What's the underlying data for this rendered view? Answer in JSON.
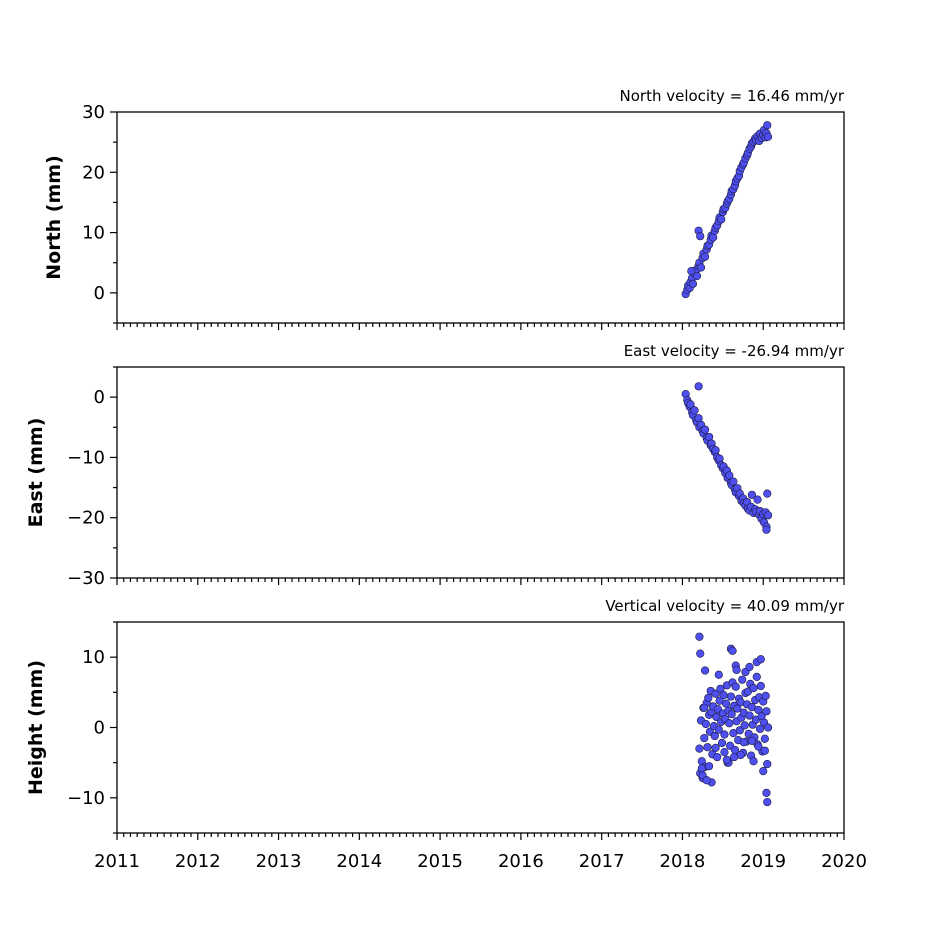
{
  "figure": {
    "point_color": "#4f4ff0",
    "point_edge_color": "#1a1a40"
  },
  "chart_data": [
    {
      "type": "scatter",
      "title": "North velocity = 16.46 mm/yr",
      "xlabel": "",
      "ylabel": "North (mm)",
      "xlim": [
        2011,
        2020
      ],
      "ylim": [
        -5,
        30
      ],
      "y_ticks": [
        0,
        10,
        20,
        30
      ],
      "y_tick_labels": [
        "0",
        "10",
        "20",
        "30"
      ],
      "grid": false,
      "series": [
        {
          "x": [
            2018.04,
            2018.06,
            2018.07,
            2018.09,
            2018.1,
            2018.12,
            2018.13,
            2018.15,
            2018.17,
            2018.18,
            2018.2,
            2018.21,
            2018.23,
            2018.25,
            2018.26,
            2018.28,
            2018.3,
            2018.31,
            2018.33,
            2018.35,
            2018.36,
            2018.38,
            2018.4,
            2018.41,
            2018.43,
            2018.45,
            2018.46,
            2018.48,
            2018.5,
            2018.51,
            2018.53,
            2018.55,
            2018.56,
            2018.58,
            2018.6,
            2018.61,
            2018.63,
            2018.65,
            2018.66,
            2018.68,
            2018.7,
            2018.71,
            2018.73,
            2018.75,
            2018.76,
            2018.78,
            2018.8,
            2018.81,
            2018.83,
            2018.85,
            2018.86,
            2018.88,
            2018.9,
            2018.91,
            2018.93,
            2018.95,
            2018.96,
            2018.98,
            2019.0,
            2019.01,
            2019.03,
            2019.04,
            2019.06,
            2018.2,
            2018.22,
            2018.11,
            2019.05
          ],
          "y": [
            -0.2,
            0.5,
            1.2,
            0.8,
            1.8,
            2.5,
            1.5,
            3.2,
            3.8,
            2.8,
            4.5,
            5.0,
            4.2,
            5.8,
            6.5,
            6.0,
            7.2,
            7.8,
            8.0,
            8.8,
            9.5,
            9.2,
            10.3,
            10.8,
            11.2,
            11.9,
            12.5,
            12.2,
            13.4,
            13.9,
            14.1,
            14.8,
            15.2,
            15.6,
            16.3,
            16.9,
            17.2,
            17.8,
            18.5,
            19.0,
            19.4,
            20.2,
            20.8,
            21.3,
            21.6,
            22.3,
            22.8,
            23.2,
            23.9,
            24.3,
            24.8,
            25.1,
            25.6,
            25.3,
            26.0,
            25.2,
            26.4,
            25.7,
            26.2,
            27.0,
            25.8,
            26.5,
            25.9,
            10.3,
            9.4,
            3.6,
            27.8
          ]
        }
      ]
    },
    {
      "type": "scatter",
      "title": "East velocity = -26.94 mm/yr",
      "xlabel": "",
      "ylabel": "East (mm)",
      "xlim": [
        2011,
        2020
      ],
      "ylim": [
        -30,
        5
      ],
      "y_ticks": [
        -30,
        -20,
        -10,
        0
      ],
      "y_tick_labels": [
        "−30",
        "−20",
        "−10",
        "0"
      ],
      "grid": false,
      "series": [
        {
          "x": [
            2018.04,
            2018.06,
            2018.07,
            2018.09,
            2018.1,
            2018.12,
            2018.13,
            2018.15,
            2018.17,
            2018.18,
            2018.2,
            2018.21,
            2018.23,
            2018.25,
            2018.26,
            2018.28,
            2018.3,
            2018.31,
            2018.33,
            2018.35,
            2018.36,
            2018.38,
            2018.4,
            2018.41,
            2018.43,
            2018.45,
            2018.46,
            2018.48,
            2018.5,
            2018.51,
            2018.53,
            2018.55,
            2018.56,
            2018.58,
            2018.6,
            2018.61,
            2018.63,
            2018.65,
            2018.66,
            2018.68,
            2018.7,
            2018.71,
            2018.73,
            2018.75,
            2018.76,
            2018.78,
            2018.8,
            2018.81,
            2018.83,
            2018.85,
            2018.86,
            2018.88,
            2018.9,
            2018.91,
            2018.93,
            2018.95,
            2018.96,
            2018.98,
            2019.0,
            2019.01,
            2019.03,
            2019.04,
            2019.06,
            2018.2,
            2019.05,
            2019.04
          ],
          "y": [
            0.5,
            -0.5,
            -1.0,
            -1.6,
            -1.2,
            -2.5,
            -3.0,
            -2.2,
            -3.8,
            -4.2,
            -3.5,
            -5.0,
            -4.6,
            -5.6,
            -6.0,
            -5.4,
            -6.8,
            -7.2,
            -6.6,
            -8.0,
            -7.7,
            -8.6,
            -9.1,
            -8.8,
            -10.0,
            -10.5,
            -10.2,
            -11.3,
            -11.8,
            -11.5,
            -12.6,
            -12.2,
            -13.4,
            -13.0,
            -14.2,
            -14.6,
            -14.0,
            -15.3,
            -15.8,
            -15.1,
            -16.4,
            -16.0,
            -17.2,
            -16.8,
            -17.6,
            -18.0,
            -17.4,
            -18.5,
            -18.8,
            -18.2,
            -16.2,
            -19.2,
            -18.6,
            -19.0,
            -17.0,
            -19.5,
            -18.9,
            -20.2,
            -19.4,
            -20.8,
            -19.1,
            -21.5,
            -19.6,
            1.8,
            -16.0,
            -22.0
          ]
        }
      ]
    },
    {
      "type": "scatter",
      "title": "Vertical velocity = 40.09 mm/yr",
      "xlabel": "",
      "ylabel": "Height (mm)",
      "xlim": [
        2011,
        2020
      ],
      "ylim": [
        -15,
        15
      ],
      "y_ticks": [
        -10,
        0,
        10
      ],
      "y_tick_labels": [
        "−10",
        "0",
        "10"
      ],
      "x_ticks": [
        2011,
        2012,
        2013,
        2014,
        2015,
        2016,
        2017,
        2018,
        2019,
        2020
      ],
      "x_tick_labels": [
        "2011",
        "2012",
        "2013",
        "2014",
        "2015",
        "2016",
        "2017",
        "2018",
        "2019",
        "2020"
      ],
      "grid": false,
      "series": [
        {
          "x": [
            2018.21,
            2018.22,
            2018.23,
            2018.24,
            2018.25,
            2018.26,
            2018.27,
            2018.28,
            2018.29,
            2018.3,
            2018.31,
            2018.32,
            2018.33,
            2018.34,
            2018.35,
            2018.36,
            2018.37,
            2018.38,
            2018.39,
            2018.4,
            2018.41,
            2018.42,
            2018.43,
            2018.44,
            2018.45,
            2018.46,
            2018.47,
            2018.48,
            2018.49,
            2018.5,
            2018.51,
            2018.52,
            2018.53,
            2018.54,
            2018.55,
            2018.56,
            2018.57,
            2018.58,
            2018.59,
            2018.6,
            2018.61,
            2018.62,
            2018.63,
            2018.64,
            2018.65,
            2018.66,
            2018.67,
            2018.68,
            2018.69,
            2018.7,
            2018.71,
            2018.72,
            2018.73,
            2018.74,
            2018.75,
            2018.76,
            2018.77,
            2018.78,
            2018.79,
            2018.8,
            2018.81,
            2018.82,
            2018.83,
            2018.84,
            2018.85,
            2018.86,
            2018.87,
            2018.88,
            2018.89,
            2018.9,
            2018.91,
            2018.92,
            2018.93,
            2018.94,
            2018.95,
            2018.96,
            2018.97,
            2018.98,
            2018.99,
            2019.0,
            2019.01,
            2019.02,
            2019.03,
            2019.04,
            2019.05,
            2019.06,
            2018.21,
            2018.22,
            2018.28,
            2018.27,
            2018.36,
            2018.57,
            2018.6,
            2018.62,
            2018.66,
            2018.67,
            2018.78,
            2018.83,
            2018.92,
            2018.97,
            2019.04,
            2019.05,
            2018.25,
            2018.3,
            2018.45,
            2018.55,
            2018.72,
            2018.88,
            2019.0,
            2018.24,
            2018.33,
            2018.41,
            2018.52,
            2018.64,
            2018.76,
            2018.86,
            2018.94,
            2019.02
          ],
          "y": [
            -3.0,
            -6.5,
            1.0,
            -4.8,
            -7.2,
            2.8,
            -1.5,
            -5.6,
            0.5,
            3.5,
            -2.8,
            4.2,
            1.8,
            -0.6,
            5.2,
            2.2,
            -3.8,
            3.0,
            0.2,
            -1.2,
            4.8,
            1.5,
            -4.2,
            2.6,
            -0.3,
            3.8,
            5.5,
            0.8,
            -2.2,
            2.0,
            4.6,
            -1.0,
            1.2,
            3.4,
            6.0,
            -5.0,
            2.4,
            0.6,
            -2.6,
            4.4,
            1.9,
            6.4,
            -0.8,
            3.1,
            -3.2,
            5.8,
            0.9,
            2.7,
            -1.8,
            4.1,
            -0.4,
            3.6,
            1.4,
            6.8,
            -3.6,
            2.1,
            0.3,
            4.9,
            -2.0,
            3.3,
            5.1,
            -0.9,
            1.7,
            6.2,
            -4.0,
            2.9,
            0.4,
            5.6,
            -1.4,
            3.9,
            1.1,
            7.2,
            -2.4,
            2.5,
            4.3,
            -0.2,
            5.9,
            1.6,
            -3.4,
            3.7,
            0.7,
            -1.6,
            4.5,
            2.3,
            -5.2,
            0.0,
            12.9,
            10.5,
            8.1,
            2.8,
            -7.8,
            -5.0,
            11.2,
            10.9,
            8.8,
            8.2,
            7.9,
            8.6,
            9.3,
            9.7,
            -9.3,
            -10.6,
            -6.8,
            -7.5,
            7.5,
            -4.6,
            -3.9,
            -4.8,
            -6.2,
            -5.8,
            -5.5,
            -2.9,
            -3.5,
            -4.2,
            -2.1,
            -1.9,
            -2.7,
            -3.3
          ]
        }
      ]
    }
  ]
}
